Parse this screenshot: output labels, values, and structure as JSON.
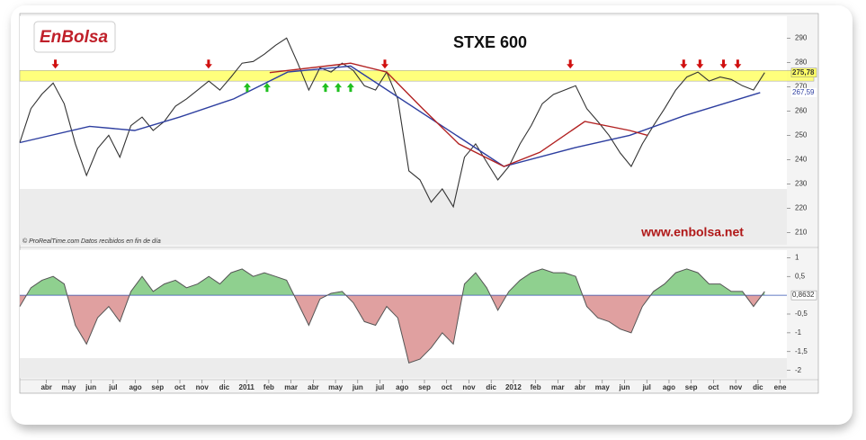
{
  "logo": "EnBolsa",
  "watermark": "www.enbolsa.net",
  "source": "© ProRealTime.com  Datos recibidos en fin de día",
  "chart_data": [
    {
      "type": "line",
      "title": "STXE 600",
      "xlim": [
        -1.2,
        33.3
      ],
      "ylim": [
        205,
        299
      ],
      "yticks": [
        210,
        220,
        230,
        240,
        250,
        260,
        270,
        280,
        290
      ],
      "band": [
        272.3,
        276.7
      ],
      "band_color": "#ffff66",
      "x": [
        -1.2,
        -0.7,
        -0.2,
        0.3,
        0.8,
        1.3,
        1.8,
        2.3,
        2.8,
        3.3,
        3.8,
        4.3,
        4.8,
        5.3,
        5.8,
        6.3,
        6.8,
        7.3,
        7.8,
        8.3,
        8.8,
        9.3,
        9.8,
        10.3,
        10.8,
        11.3,
        11.8,
        12.3,
        12.8,
        13.3,
        13.8,
        14.3,
        14.8,
        15.3,
        15.8,
        16.3,
        16.8,
        17.3,
        17.8,
        18.3,
        18.8,
        19.3,
        19.8,
        20.3,
        20.8,
        21.3,
        21.8,
        22.3,
        22.8,
        23.3,
        23.8,
        24.3,
        24.8,
        25.3,
        25.8,
        26.3,
        26.8,
        27.3,
        27.8,
        28.3,
        28.8,
        29.3,
        29.8,
        30.3,
        30.8,
        31.3,
        31.8,
        32.3
      ],
      "values": [
        247,
        261,
        267,
        271.5,
        263,
        246.5,
        233.5,
        244.6,
        250,
        241,
        254,
        257.5,
        252,
        255.7,
        262,
        265,
        268.6,
        272.3,
        268.6,
        274,
        279.7,
        280.4,
        283.4,
        287,
        290,
        279.7,
        268.6,
        277.8,
        276,
        279.7,
        276.7,
        270.4,
        268.6,
        276,
        265,
        235.4,
        231.7,
        222.5,
        228,
        220.6,
        241,
        246.5,
        239,
        231.7,
        237.2,
        246.5,
        254,
        263,
        266.8,
        268.6,
        270.4,
        261,
        255.7,
        250,
        242.8,
        237.2,
        246.5,
        254,
        261,
        268.6,
        274,
        276,
        272.3,
        274,
        273,
        270.4,
        268.6,
        275.78
      ],
      "color": "#333333",
      "price_tag": {
        "value": 275.78,
        "label": "275,78"
      },
      "series": [
        {
          "color": "#2e3fa0",
          "x": [
            -1.2,
            1.94,
            3.97,
            5.99,
            8.42,
            10.85,
            13.68,
            20.57,
            23.8,
            26.23,
            28.66,
            32.1
          ],
          "values": [
            247,
            253.7,
            252,
            257.5,
            265,
            276,
            278.5,
            237.2,
            245,
            250,
            258,
            267.59
          ],
          "tag": {
            "value": 267.59,
            "label": "267,59"
          }
        },
        {
          "color": "#b22222",
          "x": [
            10.04,
            13.68,
            15.3,
            16.92,
            18.54,
            20.57,
            22.19,
            24.21,
            26.23,
            27.04
          ],
          "values": [
            275.8,
            279.7,
            276,
            261,
            246.5,
            237.2,
            243,
            255.7,
            252,
            250
          ]
        }
      ],
      "sell_signals": [
        0.4,
        7.29,
        15.22,
        23.56,
        28.66,
        29.39,
        30.45,
        31.09
      ],
      "buy_signals": [
        9.03,
        9.92,
        12.55,
        13.12,
        13.68
      ]
    },
    {
      "type": "area",
      "xlim": [
        -1.2,
        33.3
      ],
      "ylim": [
        -2.2,
        1.2
      ],
      "yticks": [
        1,
        {
          "value": 0.5,
          "label": "0,5"
        },
        {
          "value": -0.5,
          "label": "-0,5"
        },
        -1,
        {
          "value": -1.5,
          "label": "-1,5"
        },
        -2
      ],
      "zero_label": "0,8632",
      "categories": [
        "abr",
        "may",
        "jun",
        "jul",
        "ago",
        "sep",
        "oct",
        "nov",
        "dic",
        "2011",
        "feb",
        "mar",
        "abr",
        "may",
        "jun",
        "jul",
        "ago",
        "sep",
        "oct",
        "nov",
        "dic",
        "2012",
        "feb",
        "mar",
        "abr",
        "may",
        "jun",
        "jul",
        "ago",
        "sep",
        "oct",
        "nov",
        "dic",
        "ene"
      ],
      "x": [
        -1.2,
        -0.7,
        -0.2,
        0.3,
        0.8,
        1.3,
        1.8,
        2.3,
        2.8,
        3.3,
        3.8,
        4.3,
        4.8,
        5.3,
        5.8,
        6.3,
        6.8,
        7.3,
        7.8,
        8.3,
        8.8,
        9.3,
        9.8,
        10.3,
        10.8,
        11.3,
        11.8,
        12.3,
        12.8,
        13.3,
        13.8,
        14.3,
        14.8,
        15.3,
        15.8,
        16.3,
        16.8,
        17.3,
        17.8,
        18.3,
        18.8,
        19.3,
        19.8,
        20.3,
        20.8,
        21.3,
        21.8,
        22.3,
        22.8,
        23.3,
        23.8,
        24.3,
        24.8,
        25.3,
        25.8,
        26.3,
        26.8,
        27.3,
        27.8,
        28.3,
        28.8,
        29.3,
        29.8,
        30.3,
        30.8,
        31.3,
        31.8,
        32.3
      ],
      "values": [
        -0.3,
        0.2,
        0.4,
        0.5,
        0.3,
        -0.8,
        -1.3,
        -0.6,
        -0.3,
        -0.7,
        0.1,
        0.5,
        0.1,
        0.3,
        0.4,
        0.2,
        0.3,
        0.5,
        0.3,
        0.6,
        0.7,
        0.5,
        0.6,
        0.5,
        0.4,
        -0.2,
        -0.8,
        -0.1,
        0.05,
        0.1,
        -0.2,
        -0.7,
        -0.8,
        -0.3,
        -0.6,
        -1.8,
        -1.7,
        -1.4,
        -1.0,
        -1.3,
        0.3,
        0.6,
        0.2,
        -0.4,
        0.1,
        0.4,
        0.6,
        0.7,
        0.6,
        0.6,
        0.5,
        -0.3,
        -0.6,
        -0.7,
        -0.9,
        -1.0,
        -0.3,
        0.1,
        0.3,
        0.6,
        0.7,
        0.6,
        0.3,
        0.3,
        0.1,
        0.1,
        -0.3,
        0.1
      ],
      "positive_color": "#8fd08f",
      "negative_color": "#e0a0a0",
      "color": "#555555",
      "zero_color": "#3050b0"
    }
  ]
}
